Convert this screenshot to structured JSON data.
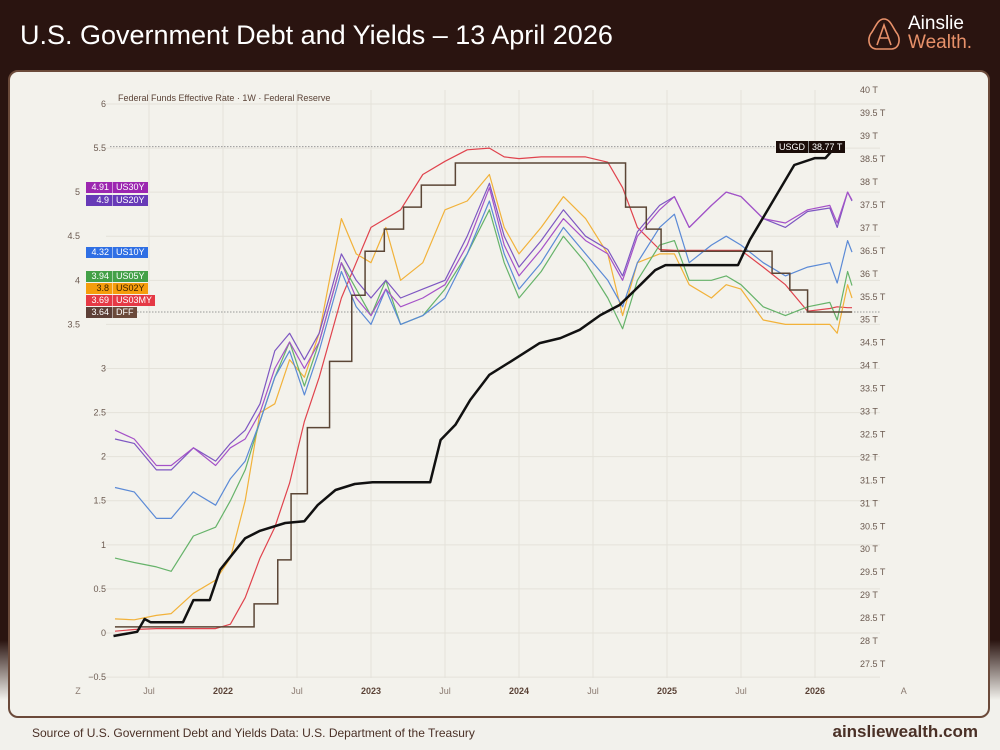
{
  "header": {
    "title": "U.S. Government Debt and Yields – 13 April 2026"
  },
  "logo": {
    "line1": "Ainslie",
    "line2": "Wealth.",
    "icon": "ainslie-a-icon"
  },
  "footer": {
    "source": "Source of U.S. Government Debt and Yields Data: U.S. Department of the Treasury",
    "site": "ainsliewealth.com"
  },
  "chart_data": {
    "type": "line",
    "title": "Federal Funds Effective Rate · 1W · Federal Reserve",
    "left_axis": {
      "ylim": [
        -0.5,
        6
      ],
      "ticks": [
        "6",
        "5.5",
        "5",
        "4.5",
        "4",
        "3.5",
        "3",
        "2.5",
        "2",
        "1.5",
        "1",
        "0.5",
        "0",
        "−0.5"
      ]
    },
    "right_axis": {
      "ylim": [
        27.5,
        40
      ],
      "ticks": [
        "40 T",
        "39.5 T",
        "39 T",
        "38.5 T",
        "38 T",
        "37.5 T",
        "37 T",
        "36.5 T",
        "36 T",
        "35.5 T",
        "35 T",
        "34.5 T",
        "34 T",
        "33.5 T",
        "33 T",
        "32.5 T",
        "32 T",
        "31.5 T",
        "31 T",
        "30.5 T",
        "30 T",
        "29.5 T",
        "29 T",
        "28.5 T",
        "28 T",
        "27.5 T"
      ]
    },
    "x_ticks": [
      {
        "x": 2021.02,
        "label": "Z",
        "bold": false
      },
      {
        "x": 2021.5,
        "label": "Jul",
        "bold": false
      },
      {
        "x": 2022,
        "label": "2022",
        "bold": true
      },
      {
        "x": 2022.5,
        "label": "Jul",
        "bold": false
      },
      {
        "x": 2023,
        "label": "2023",
        "bold": true
      },
      {
        "x": 2023.5,
        "label": "Jul",
        "bold": false
      },
      {
        "x": 2024,
        "label": "2024",
        "bold": true
      },
      {
        "x": 2024.5,
        "label": "Jul",
        "bold": false
      },
      {
        "x": 2025,
        "label": "2025",
        "bold": true
      },
      {
        "x": 2025.5,
        "label": "Jul",
        "bold": false
      },
      {
        "x": 2026,
        "label": "2026",
        "bold": true
      },
      {
        "x": 2026.6,
        "label": "A",
        "bold": false
      }
    ],
    "dates": [
      2021.27,
      2021.4,
      2021.55,
      2021.65,
      2021.8,
      2021.95,
      2022.05,
      2022.15,
      2022.25,
      2022.35,
      2022.45,
      2022.55,
      2022.65,
      2022.8,
      2022.9,
      2023.0,
      2023.1,
      2023.2,
      2023.35,
      2023.5,
      2023.65,
      2023.8,
      2023.9,
      2024.0,
      2024.15,
      2024.3,
      2024.45,
      2024.6,
      2024.7,
      2024.8,
      2024.95,
      2025.05,
      2025.15,
      2025.3,
      2025.4,
      2025.5,
      2025.65,
      2025.8,
      2025.95,
      2026.1,
      2026.15,
      2026.22,
      2026.25
    ],
    "series": [
      {
        "name": "US30Y",
        "last": "4.91",
        "color": "#a552c8",
        "badge": "#9c27b0",
        "axis": "left",
        "values": [
          2.3,
          2.2,
          1.9,
          1.9,
          2.1,
          1.9,
          2.1,
          2.2,
          2.5,
          3.0,
          3.3,
          3.0,
          3.3,
          4.2,
          3.8,
          3.6,
          3.9,
          3.7,
          3.8,
          3.95,
          4.4,
          5.05,
          4.4,
          4.05,
          4.35,
          4.7,
          4.45,
          4.3,
          4.0,
          4.5,
          4.8,
          4.95,
          4.6,
          4.85,
          5.0,
          4.95,
          4.7,
          4.65,
          4.8,
          4.85,
          4.65,
          5.0,
          4.91
        ]
      },
      {
        "name": "US20Y",
        "last": "4.9",
        "color": "#7e57c2",
        "badge": "#673ab7",
        "axis": "left",
        "values": [
          2.2,
          2.15,
          1.85,
          1.85,
          2.1,
          1.95,
          2.15,
          2.3,
          2.6,
          3.2,
          3.4,
          3.1,
          3.4,
          4.3,
          4.0,
          3.8,
          4.0,
          3.8,
          3.9,
          4.0,
          4.5,
          5.1,
          4.5,
          4.15,
          4.45,
          4.8,
          4.5,
          4.35,
          4.05,
          4.55,
          4.85,
          4.95,
          4.6,
          4.85,
          5.0,
          4.95,
          4.7,
          4.6,
          4.78,
          4.82,
          4.6,
          5.0,
          4.9
        ]
      },
      {
        "name": "US10Y",
        "last": "4.32",
        "color": "#5b8ad6",
        "badge": "#2f6fe4",
        "axis": "left",
        "values": [
          1.65,
          1.6,
          1.3,
          1.3,
          1.6,
          1.45,
          1.75,
          1.95,
          2.4,
          2.9,
          3.2,
          2.7,
          3.2,
          4.1,
          3.7,
          3.5,
          3.9,
          3.5,
          3.6,
          3.8,
          4.3,
          4.9,
          4.3,
          3.9,
          4.2,
          4.6,
          4.3,
          4.0,
          3.7,
          4.2,
          4.6,
          4.75,
          4.2,
          4.4,
          4.5,
          4.4,
          4.2,
          4.05,
          4.15,
          4.2,
          3.97,
          4.45,
          4.32
        ]
      },
      {
        "name": "US05Y",
        "last": "3.94",
        "color": "#66b36a",
        "badge": "#43a047",
        "axis": "left",
        "values": [
          0.85,
          0.8,
          0.75,
          0.7,
          1.1,
          1.2,
          1.5,
          1.85,
          2.4,
          2.9,
          3.3,
          2.8,
          3.3,
          4.2,
          3.9,
          3.6,
          4.0,
          3.5,
          3.6,
          3.9,
          4.3,
          4.8,
          4.2,
          3.8,
          4.1,
          4.5,
          4.2,
          3.8,
          3.45,
          4.0,
          4.4,
          4.45,
          4.0,
          4.0,
          4.05,
          3.95,
          3.7,
          3.6,
          3.7,
          3.75,
          3.55,
          4.1,
          3.94
        ]
      },
      {
        "name": "US02Y",
        "last": "3.8",
        "color": "#f2b23a",
        "badge": "#f59d0c",
        "axis": "left",
        "values": [
          0.16,
          0.15,
          0.2,
          0.22,
          0.45,
          0.6,
          0.85,
          1.5,
          2.5,
          2.6,
          3.1,
          2.9,
          3.4,
          4.7,
          4.3,
          4.2,
          4.6,
          4.0,
          4.2,
          4.8,
          4.9,
          5.2,
          4.6,
          4.3,
          4.6,
          4.95,
          4.7,
          4.3,
          3.6,
          4.2,
          4.3,
          4.3,
          3.95,
          3.8,
          3.95,
          3.9,
          3.55,
          3.5,
          3.5,
          3.5,
          3.4,
          3.95,
          3.8
        ]
      },
      {
        "name": "US03MY",
        "last": "3.69",
        "color": "#e0434d",
        "badge": "#e53945",
        "axis": "left",
        "values": [
          0.02,
          0.04,
          0.05,
          0.05,
          0.05,
          0.05,
          0.1,
          0.4,
          0.85,
          1.2,
          1.7,
          2.4,
          2.9,
          3.8,
          4.2,
          4.6,
          4.7,
          4.8,
          5.2,
          5.35,
          5.48,
          5.5,
          5.4,
          5.38,
          5.4,
          5.4,
          5.4,
          5.34,
          5.05,
          4.6,
          4.35,
          4.34,
          4.34,
          4.34,
          4.34,
          4.34,
          4.15,
          3.95,
          3.65,
          3.68,
          3.7,
          3.69,
          3.69
        ]
      }
    ],
    "dff": {
      "name": "DFF",
      "last": "3.64",
      "color": "#5b4636",
      "badge": "#5d4037",
      "axis": "left",
      "steps": [
        [
          2021.27,
          0.07
        ],
        [
          2022.21,
          0.33
        ],
        [
          2022.37,
          0.83
        ],
        [
          2022.46,
          1.58
        ],
        [
          2022.57,
          2.33
        ],
        [
          2022.72,
          3.08
        ],
        [
          2022.87,
          3.83
        ],
        [
          2022.96,
          4.33
        ],
        [
          2023.09,
          4.58
        ],
        [
          2023.22,
          4.83
        ],
        [
          2023.34,
          5.08
        ],
        [
          2023.57,
          5.33
        ],
        [
          2024.72,
          4.83
        ],
        [
          2024.86,
          4.58
        ],
        [
          2024.96,
          4.33
        ],
        [
          2025.71,
          4.08
        ],
        [
          2025.83,
          3.89
        ],
        [
          2025.95,
          3.64
        ],
        [
          2026.25,
          3.64
        ]
      ]
    },
    "debt": {
      "name": "USGD",
      "last": "38.77 T",
      "color": "#111111",
      "axis": "right",
      "points": [
        [
          2021.26,
          28.11
        ],
        [
          2021.42,
          28.2
        ],
        [
          2021.47,
          28.48
        ],
        [
          2021.51,
          28.41
        ],
        [
          2021.73,
          28.41
        ],
        [
          2021.8,
          28.89
        ],
        [
          2021.91,
          28.89
        ],
        [
          2021.98,
          29.55
        ],
        [
          2022.15,
          30.24
        ],
        [
          2022.25,
          30.4
        ],
        [
          2022.42,
          30.57
        ],
        [
          2022.55,
          30.61
        ],
        [
          2022.64,
          30.96
        ],
        [
          2022.76,
          31.29
        ],
        [
          2022.89,
          31.42
        ],
        [
          2023.01,
          31.46
        ],
        [
          2023.4,
          31.46
        ],
        [
          2023.47,
          32.38
        ],
        [
          2023.57,
          32.71
        ],
        [
          2023.67,
          33.25
        ],
        [
          2023.8,
          33.8
        ],
        [
          2023.94,
          34.08
        ],
        [
          2024.14,
          34.49
        ],
        [
          2024.28,
          34.6
        ],
        [
          2024.41,
          34.78
        ],
        [
          2024.55,
          35.1
        ],
        [
          2024.68,
          35.32
        ],
        [
          2024.82,
          35.76
        ],
        [
          2024.92,
          36.08
        ],
        [
          2024.99,
          36.19
        ],
        [
          2025.48,
          36.19
        ],
        [
          2025.56,
          36.74
        ],
        [
          2025.66,
          37.28
        ],
        [
          2025.86,
          38.37
        ],
        [
          2026.0,
          38.52
        ],
        [
          2026.07,
          38.52
        ],
        [
          2026.14,
          38.77
        ]
      ]
    }
  }
}
